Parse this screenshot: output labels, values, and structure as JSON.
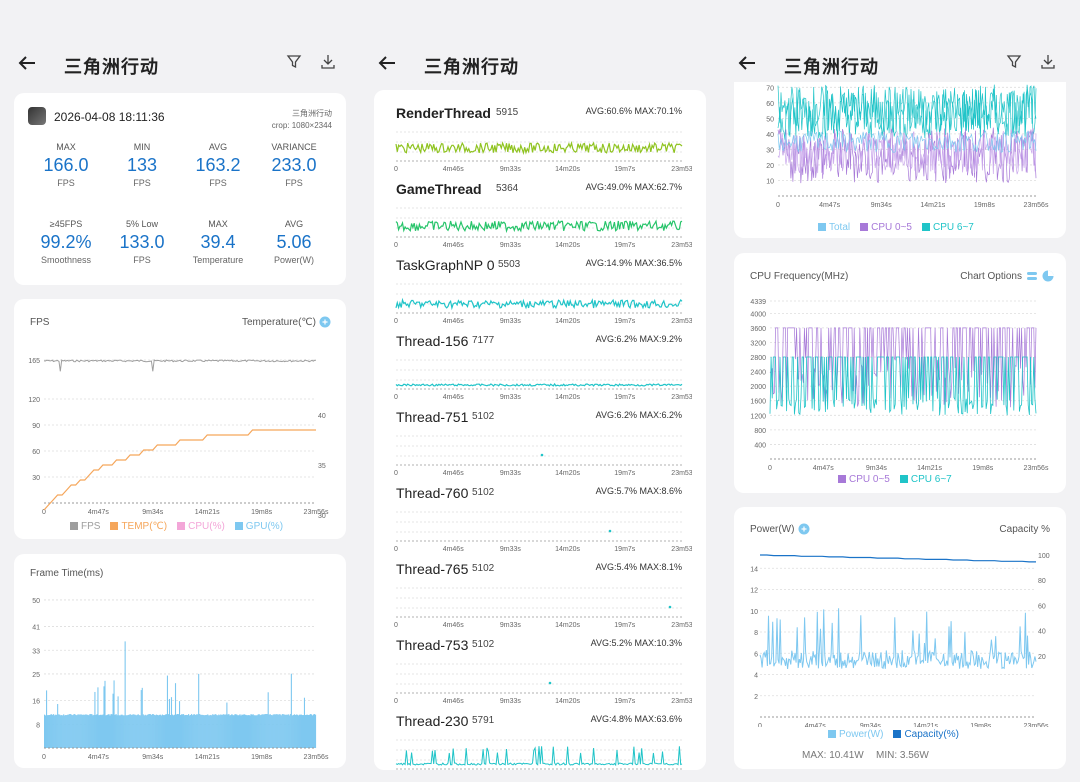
{
  "app": {
    "title": "三角洲行动"
  },
  "summary": {
    "datetime": "2026-04-08 18:11:36",
    "game": "三角洲行动",
    "crop": "crop: 1080×2344",
    "row1": [
      {
        "label": "MAX",
        "value": "166.0",
        "unit": "FPS"
      },
      {
        "label": "MIN",
        "value": "133",
        "unit": "FPS"
      },
      {
        "label": "AVG",
        "value": "163.2",
        "unit": "FPS"
      },
      {
        "label": "VARIANCE",
        "value": "233.0",
        "unit": "FPS"
      }
    ],
    "row2": [
      {
        "label": "≥45FPS",
        "value": "99.2%",
        "unit": "Smoothness"
      },
      {
        "label": "5% Low",
        "value": "133.0",
        "unit": "FPS"
      },
      {
        "label": "MAX",
        "value": "39.4",
        "unit": "Temperature"
      },
      {
        "label": "AVG",
        "value": "5.06",
        "unit": "Power(W)"
      }
    ]
  },
  "fps_chart": {
    "title_left": "FPS",
    "title_right": "Temperature(℃)",
    "y_ticks": [
      "165",
      "120",
      "90",
      "60",
      "30"
    ],
    "y_right_ticks": [
      "40",
      "35",
      "30"
    ],
    "x_ticks": [
      "0",
      "4m47s",
      "9m34s",
      "14m21s",
      "19m8s",
      "23m56s"
    ],
    "legend": [
      {
        "label": "FPS",
        "color": "#9e9e9e"
      },
      {
        "label": "TEMP(℃)",
        "color": "#f5a65b"
      },
      {
        "label": "CPU(%)",
        "color": "#f3a6d8"
      },
      {
        "label": "GPU(%)",
        "color": "#7ec8f0"
      }
    ]
  },
  "frame_chart": {
    "title": "Frame Time(ms)",
    "y_ticks": [
      "50",
      "41",
      "33",
      "25",
      "16",
      "8"
    ],
    "x_ticks": [
      "0",
      "4m47s",
      "9m34s",
      "14m21s",
      "19m8s",
      "23m56s"
    ]
  },
  "threads": [
    {
      "name": "RenderThread",
      "id": "5915",
      "stats": "AVG:60.6% MAX:70.1%",
      "bold": true
    },
    {
      "name": "GameThread",
      "id": "5364",
      "stats": "AVG:49.0% MAX:62.7%",
      "bold": true
    },
    {
      "name": "TaskGraphNP 0",
      "id": "5503",
      "stats": "AVG:14.9% MAX:36.5%",
      "bold": false
    },
    {
      "name": "Thread-156",
      "id": "7177",
      "stats": "AVG:6.2% MAX:9.2%",
      "bold": false
    },
    {
      "name": "Thread-751",
      "id": "5102",
      "stats": "AVG:6.2% MAX:6.2%",
      "bold": false
    },
    {
      "name": "Thread-760",
      "id": "5102",
      "stats": "AVG:5.7% MAX:8.6%",
      "bold": false
    },
    {
      "name": "Thread-765",
      "id": "5102",
      "stats": "AVG:5.4% MAX:8.1%",
      "bold": false
    },
    {
      "name": "Thread-753",
      "id": "5102",
      "stats": "AVG:5.2% MAX:10.3%",
      "bold": false
    },
    {
      "name": "Thread-230",
      "id": "5791",
      "stats": "AVG:4.8% MAX:63.6%",
      "bold": false
    }
  ],
  "thread_x_ticks": [
    "0",
    "4m46s",
    "9m33s",
    "14m20s",
    "19m7s",
    "23m53"
  ],
  "cpu_load_chart": {
    "y_ticks": [
      "70",
      "60",
      "50",
      "40",
      "30",
      "20",
      "10"
    ],
    "x_ticks": [
      "0",
      "4m47s",
      "9m34s",
      "14m21s",
      "19m8s",
      "23m56s"
    ],
    "legend": [
      {
        "label": "Total",
        "color": "#7ec8f0"
      },
      {
        "label": "CPU 0~5",
        "color": "#a779d8"
      },
      {
        "label": "CPU 6~7",
        "color": "#20c4c8"
      }
    ]
  },
  "cpu_freq_chart": {
    "title": "CPU Frequency(MHz)",
    "options_label": "Chart Options",
    "y_ticks": [
      "4339",
      "4000",
      "3600",
      "3200",
      "2800",
      "2400",
      "2000",
      "1600",
      "1200",
      "800",
      "400"
    ],
    "x_ticks": [
      "0",
      "4m47s",
      "9m34s",
      "14m21s",
      "19m8s",
      "23m56s"
    ],
    "legend": [
      {
        "label": "CPU 0~5",
        "color": "#a779d8"
      },
      {
        "label": "CPU 6~7",
        "color": "#20c4c8"
      }
    ]
  },
  "power_chart": {
    "title_left": "Power(W)",
    "title_right": "Capacity %",
    "y_ticks": [
      "14",
      "12",
      "10",
      "8",
      "6",
      "4",
      "2"
    ],
    "y_right_ticks": [
      "100",
      "80",
      "60",
      "40",
      "20"
    ],
    "x_ticks": [
      "0",
      "4m47s",
      "9m34s",
      "14m21s",
      "19m8s",
      "23m56s"
    ],
    "legend": [
      {
        "label": "Power(W)",
        "color": "#7ec8f0"
      },
      {
        "label": "Capacity(%)",
        "color": "#1a73c8"
      }
    ],
    "max_label": "MAX: 10.41W",
    "min_label": "MIN: 3.56W"
  },
  "chart_data": [
    {
      "type": "line",
      "title": "",
      "ylabel": "FPS",
      "y2label": "Temperature(℃)",
      "x": [
        "0",
        "4m47s",
        "9m34s",
        "14m21s",
        "19m8s",
        "23m56s"
      ],
      "series": [
        {
          "name": "FPS",
          "values": [
            165,
            165,
            165,
            165,
            165,
            165
          ]
        },
        {
          "name": "TEMP(℃)",
          "values": [
            30,
            33,
            36,
            38,
            39,
            39
          ]
        }
      ]
    },
    {
      "type": "bar",
      "title": "",
      "ylabel": "Frame Time(ms)",
      "x": [
        "0",
        "4m47s",
        "9m34s",
        "14m21s",
        "19m8s",
        "23m56s"
      ],
      "series": [
        {
          "name": "",
          "values": [
            8,
            8,
            8,
            8,
            8,
            8
          ]
        }
      ]
    },
    {
      "type": "line",
      "title": "",
      "ylabel": "CPU Frequency(MHz)",
      "x": [
        "0",
        "4m47s",
        "9m34s",
        "14m21s",
        "19m8s",
        "23m56s"
      ],
      "series": [
        {
          "name": "CPU 0~5",
          "values": [
            2800,
            3600,
            2800,
            3600,
            2800,
            3600
          ]
        },
        {
          "name": "CPU 6~7",
          "values": [
            2800,
            1200,
            2800,
            1200,
            2800,
            1200
          ]
        }
      ]
    },
    {
      "type": "line",
      "title": "",
      "ylabel": "Power(W)",
      "y2label": "Capacity %",
      "x": [
        "0",
        "4m47s",
        "9m34s",
        "14m21s",
        "19m8s",
        "23m56s"
      ],
      "series": [
        {
          "name": "Power(W)",
          "values": [
            5,
            5,
            5.5,
            5,
            5,
            4.5
          ]
        },
        {
          "name": "Capacity(%)",
          "values": [
            100,
            99,
            98,
            97,
            96,
            95
          ]
        }
      ]
    }
  ]
}
